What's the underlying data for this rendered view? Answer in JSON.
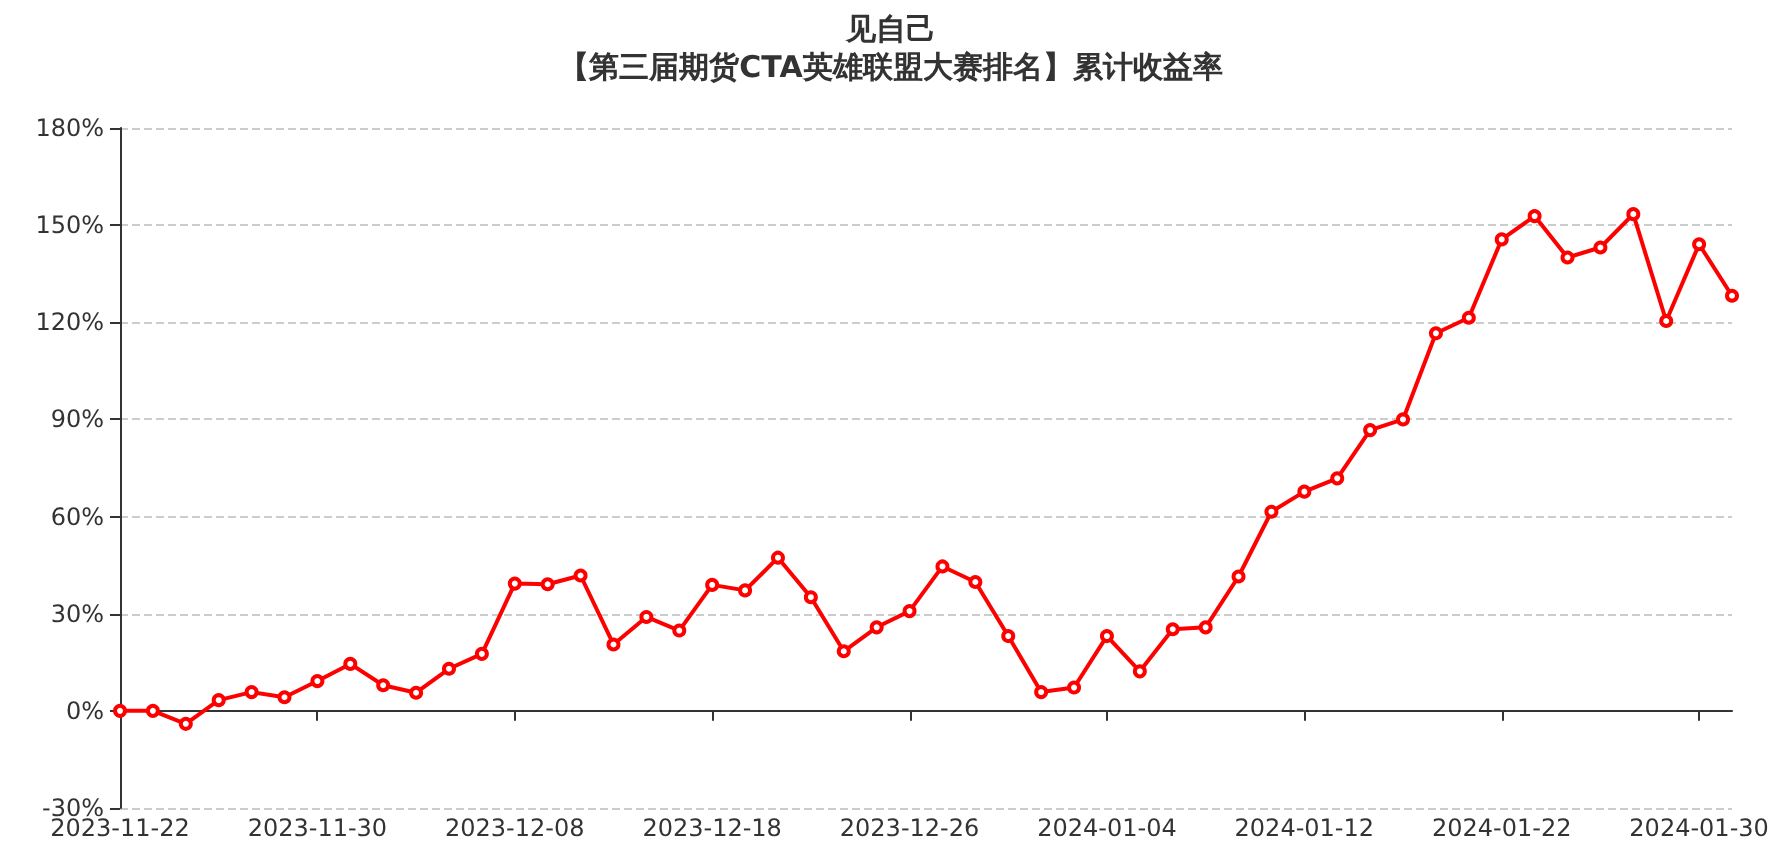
{
  "chart_data": {
    "type": "line",
    "title": "见自己",
    "subtitle": "【第三届期货CTA英雄联盟大赛排名】累计收益率",
    "categories": [
      "2023-11-22",
      null,
      null,
      null,
      null,
      null,
      "2023-11-30",
      null,
      null,
      null,
      null,
      null,
      "2023-12-08",
      null,
      null,
      null,
      null,
      null,
      "2023-12-18",
      null,
      null,
      null,
      null,
      null,
      "2023-12-26",
      null,
      null,
      null,
      null,
      null,
      "2024-01-04",
      null,
      null,
      null,
      null,
      null,
      "2024-01-12",
      null,
      null,
      null,
      null,
      null,
      "2024-01-22",
      null,
      null,
      null,
      null,
      null,
      "2024-01-30",
      null
    ],
    "series": [
      {
        "color": "#ff0000",
        "values": [
          0,
          0,
          -4,
          3.3,
          5.8,
          4.2,
          9.2,
          14.5,
          7.9,
          5.6,
          13,
          17.6,
          39.3,
          39.1,
          41.8,
          20.5,
          29,
          24.8,
          38.9,
          37.2,
          47.3,
          35.1,
          18.4,
          25.8,
          30.8,
          44.6,
          39.8,
          23.1,
          5.8,
          7.2,
          23.1,
          12.2,
          25.2,
          25.8,
          41.5,
          61.5,
          67.7,
          71.8,
          86.7,
          90,
          116.6,
          121.4,
          145.6,
          152.8,
          140,
          143.1,
          153.4,
          120.4,
          144.1,
          128.2
        ]
      }
    ],
    "ylim": [
      -30,
      180
    ],
    "yticks": [
      {
        "value": -30,
        "label": "-30%"
      },
      {
        "value": 0,
        "label": "0%"
      },
      {
        "value": 30,
        "label": "30%"
      },
      {
        "value": 60,
        "label": "60%"
      },
      {
        "value": 90,
        "label": "90%"
      },
      {
        "value": 120,
        "label": "120%"
      },
      {
        "value": 150,
        "label": "150%"
      },
      {
        "value": 180,
        "label": "180%"
      }
    ],
    "grid": "y",
    "marker": "circle",
    "line_style": "solid"
  }
}
